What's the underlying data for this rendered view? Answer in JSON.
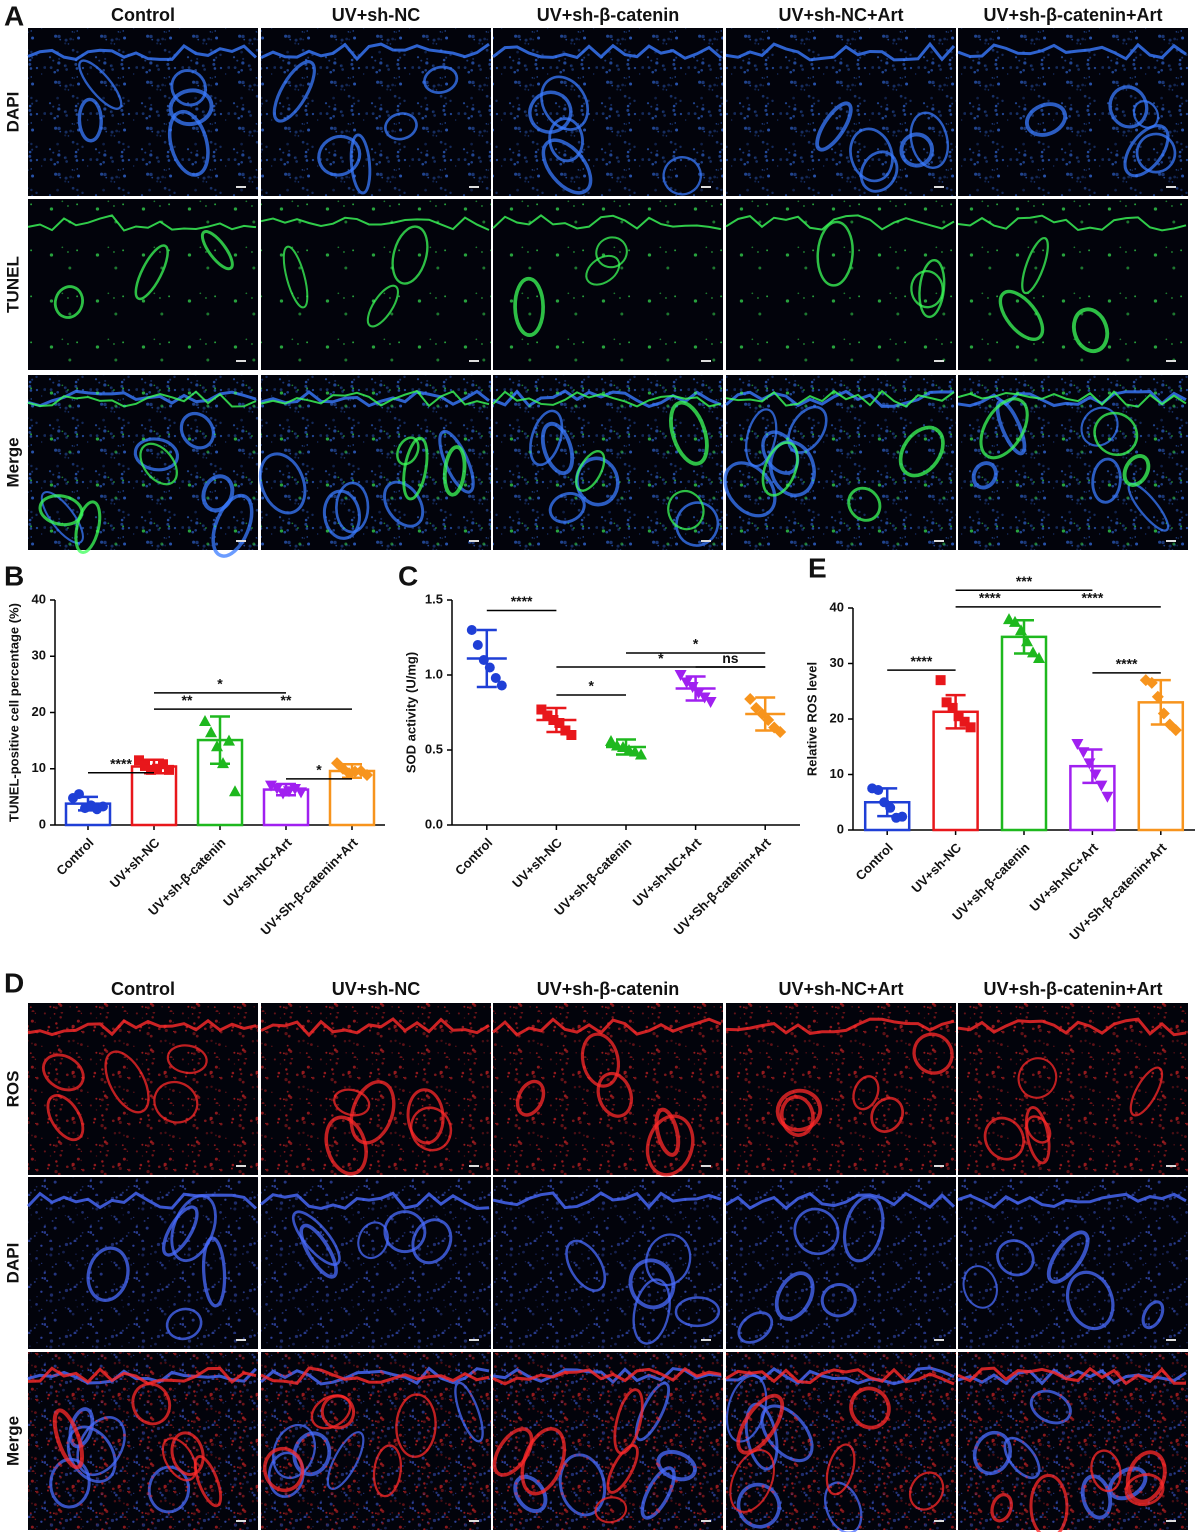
{
  "panel_a": {
    "label": "A",
    "columns": [
      "Control",
      "UV+sh-NC",
      "UV+sh-β-catenin",
      "UV+sh-NC+Art",
      "UV+sh-β-catenin+Art"
    ],
    "rows": [
      "DAPI",
      "TUNEL",
      "Merge"
    ]
  },
  "panel_d": {
    "label": "D",
    "columns": [
      "Control",
      "UV+sh-NC",
      "UV+sh-β-catenin",
      "UV+sh-NC+Art",
      "UV+sh-β-catenin+Art"
    ],
    "rows": [
      "ROS",
      "DAPI",
      "Merge"
    ]
  },
  "chart_data": [
    {
      "type": "bar",
      "label": "B",
      "ylabel": "TUNEL-positive cell percentage (%)",
      "categories": [
        "Control",
        "UV+sh-NC",
        "UV+sh-β-catenin",
        "UV+sh-NC+Art",
        "UV+Sh-β-catenin+Art"
      ],
      "colors": [
        "#1f3fd6",
        "#e8171b",
        "#1eb81e",
        "#a020f0",
        "#f7941d"
      ],
      "markers": [
        "circle",
        "square",
        "triangle",
        "triangle-down",
        "diamond"
      ],
      "values": [
        3.8,
        10.4,
        15.1,
        6.3,
        9.6
      ],
      "errors": [
        1.2,
        1.2,
        4.2,
        1.0,
        1.2
      ],
      "points": [
        [
          4.8,
          5.5,
          3.0,
          3.5,
          2.8,
          3.3
        ],
        [
          11.5,
          10.5,
          9.8,
          10.0,
          10.8,
          9.8
        ],
        [
          18.5,
          16.5,
          14.0,
          11.0,
          15.0,
          6.0
        ],
        [
          7.0,
          6.5,
          5.6,
          6.0,
          6.4,
          5.8
        ],
        [
          11.0,
          10.0,
          9.2,
          9.5,
          9.6,
          8.9
        ]
      ],
      "ylim": [
        0,
        40
      ],
      "yticks": [
        0,
        10,
        20,
        30,
        40
      ],
      "annotations": [
        "****",
        "*",
        "**",
        "**",
        "*"
      ]
    },
    {
      "type": "scatter",
      "label": "C",
      "ylabel": "SOD activity (U/mg)",
      "categories": [
        "Control",
        "UV+sh-NC",
        "UV+sh-β-catenin",
        "UV+sh-NC+Art",
        "UV+Sh-β-catenin+Art"
      ],
      "colors": [
        "#1f3fd6",
        "#e8171b",
        "#1eb81e",
        "#a020f0",
        "#f7941d"
      ],
      "markers": [
        "circle",
        "square",
        "triangle",
        "triangle-down",
        "diamond"
      ],
      "values": [
        1.11,
        0.7,
        0.52,
        0.91,
        0.74
      ],
      "errors": [
        0.19,
        0.08,
        0.05,
        0.08,
        0.11
      ],
      "points": [
        [
          1.3,
          1.2,
          1.1,
          1.05,
          0.98,
          0.93
        ],
        [
          0.77,
          0.73,
          0.7,
          0.68,
          0.63,
          0.6
        ],
        [
          0.56,
          0.53,
          0.52,
          0.5,
          0.49,
          0.47
        ],
        [
          1.0,
          0.95,
          0.92,
          0.88,
          0.85,
          0.82
        ],
        [
          0.84,
          0.78,
          0.74,
          0.7,
          0.65,
          0.62
        ]
      ],
      "ylim": [
        0,
        1.5
      ],
      "yticks": [
        {
          "value": 0,
          "label": "0.0"
        },
        0.5,
        {
          "value": 1,
          "label": "1.0"
        },
        1.5
      ],
      "annotations": [
        "****",
        "*",
        "*",
        "*",
        "ns"
      ]
    },
    {
      "type": "bar",
      "label": "E",
      "ylabel": "Relative ROS level",
      "categories": [
        "Control",
        "UV+sh-NC",
        "UV+sh-β-catenin",
        "UV+sh-NC+Art",
        "UV+Sh-β-catenin+Art"
      ],
      "colors": [
        "#1f3fd6",
        "#e8171b",
        "#1eb81e",
        "#a020f0",
        "#f7941d"
      ],
      "markers": [
        "circle",
        "square",
        "triangle",
        "triangle-down",
        "diamond"
      ],
      "values": [
        5.0,
        21.3,
        34.8,
        11.5,
        23.0
      ],
      "errors": [
        2.5,
        3.0,
        3.0,
        3.0,
        4.0
      ],
      "points": [
        [
          7.5,
          7.2,
          5.0,
          4.0,
          2.2,
          2.4
        ],
        [
          27.0,
          23.0,
          22.0,
          20.5,
          19.5,
          18.5
        ],
        [
          38.0,
          37.5,
          36.0,
          34.0,
          32.0,
          31.0
        ],
        [
          15.5,
          14.0,
          12.0,
          10.0,
          8.0,
          6.0
        ],
        [
          27.0,
          26.5,
          24.0,
          21.0,
          19.0,
          18.0
        ]
      ],
      "ylim": [
        0,
        40
      ],
      "yticks": [
        0,
        10,
        20,
        30,
        40
      ],
      "annotations": [
        "****",
        "****",
        "***",
        "****",
        "****"
      ]
    }
  ]
}
